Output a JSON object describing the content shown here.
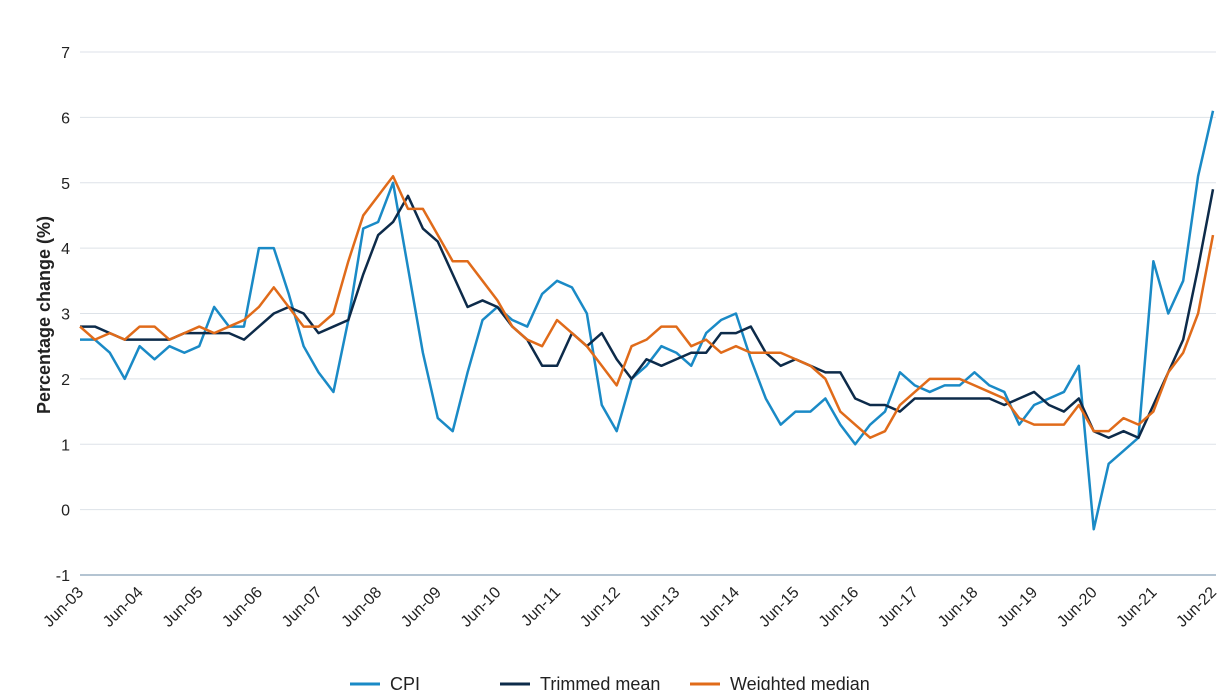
{
  "chart_data": {
    "type": "line",
    "y_label": "Percentage change (%)",
    "categories": [
      "Jun-03",
      null,
      null,
      null,
      "Jun-04",
      null,
      null,
      null,
      "Jun-05",
      null,
      null,
      null,
      "Jun-06",
      null,
      null,
      null,
      "Jun-07",
      null,
      null,
      null,
      "Jun-08",
      null,
      null,
      null,
      "Jun-09",
      null,
      null,
      null,
      "Jun-10",
      null,
      null,
      null,
      "Jun-11",
      null,
      null,
      null,
      "Jun-12",
      null,
      null,
      null,
      "Jun-13",
      null,
      null,
      null,
      "Jun-14",
      null,
      null,
      null,
      "Jun-15",
      null,
      null,
      null,
      "Jun-16",
      null,
      null,
      null,
      "Jun-17",
      null,
      null,
      null,
      "Jun-18",
      null,
      null,
      null,
      "Jun-19",
      null,
      null,
      null,
      "Jun-20",
      null,
      null,
      null,
      "Jun-21",
      null,
      null,
      null,
      "Jun-22"
    ],
    "series": [
      {
        "name": "CPI",
        "color": "#1a8ac6",
        "values": [
          2.6,
          2.6,
          2.4,
          2.0,
          2.5,
          2.3,
          2.5,
          2.4,
          2.5,
          3.1,
          2.8,
          2.8,
          4.0,
          4.0,
          3.3,
          2.5,
          2.1,
          1.8,
          2.9,
          4.3,
          4.4,
          5.0,
          3.7,
          2.4,
          1.4,
          1.2,
          2.1,
          2.9,
          3.1,
          2.9,
          2.8,
          3.3,
          3.5,
          3.4,
          3.0,
          1.6,
          1.2,
          2.0,
          2.2,
          2.5,
          2.4,
          2.2,
          2.7,
          2.9,
          3.0,
          2.3,
          1.7,
          1.3,
          1.5,
          1.5,
          1.7,
          1.3,
          1.0,
          1.3,
          1.5,
          2.1,
          1.9,
          1.8,
          1.9,
          1.9,
          2.1,
          1.9,
          1.8,
          1.3,
          1.6,
          1.7,
          1.8,
          2.2,
          -0.3,
          0.7,
          0.9,
          1.1,
          3.8,
          3.0,
          3.5,
          5.1,
          6.1
        ]
      },
      {
        "name": "Trimmed mean",
        "color": "#0d2b4a",
        "values": [
          2.8,
          2.8,
          2.7,
          2.6,
          2.6,
          2.6,
          2.6,
          2.7,
          2.7,
          2.7,
          2.7,
          2.6,
          2.8,
          3.0,
          3.1,
          3.0,
          2.7,
          2.8,
          2.9,
          3.6,
          4.2,
          4.4,
          4.8,
          4.3,
          4.1,
          3.6,
          3.1,
          3.2,
          3.1,
          2.8,
          2.6,
          2.2,
          2.2,
          2.7,
          2.5,
          2.7,
          2.3,
          2.0,
          2.3,
          2.2,
          2.3,
          2.4,
          2.4,
          2.7,
          2.7,
          2.8,
          2.4,
          2.2,
          2.3,
          2.2,
          2.1,
          2.1,
          1.7,
          1.6,
          1.6,
          1.5,
          1.7,
          1.7,
          1.7,
          1.7,
          1.7,
          1.7,
          1.6,
          1.7,
          1.8,
          1.6,
          1.5,
          1.7,
          1.2,
          1.1,
          1.2,
          1.1,
          1.6,
          2.1,
          2.6,
          3.7,
          4.9
        ]
      },
      {
        "name": "Weighted median",
        "color": "#e06b1a",
        "values": [
          2.8,
          2.6,
          2.7,
          2.6,
          2.8,
          2.8,
          2.6,
          2.7,
          2.8,
          2.7,
          2.8,
          2.9,
          3.1,
          3.4,
          3.1,
          2.8,
          2.8,
          3.0,
          3.8,
          4.5,
          4.8,
          5.1,
          4.6,
          4.6,
          4.2,
          3.8,
          3.8,
          3.5,
          3.2,
          2.8,
          2.6,
          2.5,
          2.9,
          2.7,
          2.5,
          2.2,
          1.9,
          2.5,
          2.6,
          2.8,
          2.8,
          2.5,
          2.6,
          2.4,
          2.5,
          2.4,
          2.4,
          2.4,
          2.3,
          2.2,
          2.0,
          1.5,
          1.3,
          1.1,
          1.2,
          1.6,
          1.8,
          2.0,
          2.0,
          2.0,
          1.9,
          1.8,
          1.7,
          1.4,
          1.3,
          1.3,
          1.3,
          1.6,
          1.2,
          1.2,
          1.4,
          1.3,
          1.5,
          2.1,
          2.4,
          3.0,
          4.2
        ]
      }
    ],
    "ylim": [
      -1,
      7
    ],
    "yticks": [
      -1,
      0,
      1,
      2,
      3,
      4,
      5,
      6,
      7
    ],
    "grid": true,
    "legend": "bottom"
  }
}
